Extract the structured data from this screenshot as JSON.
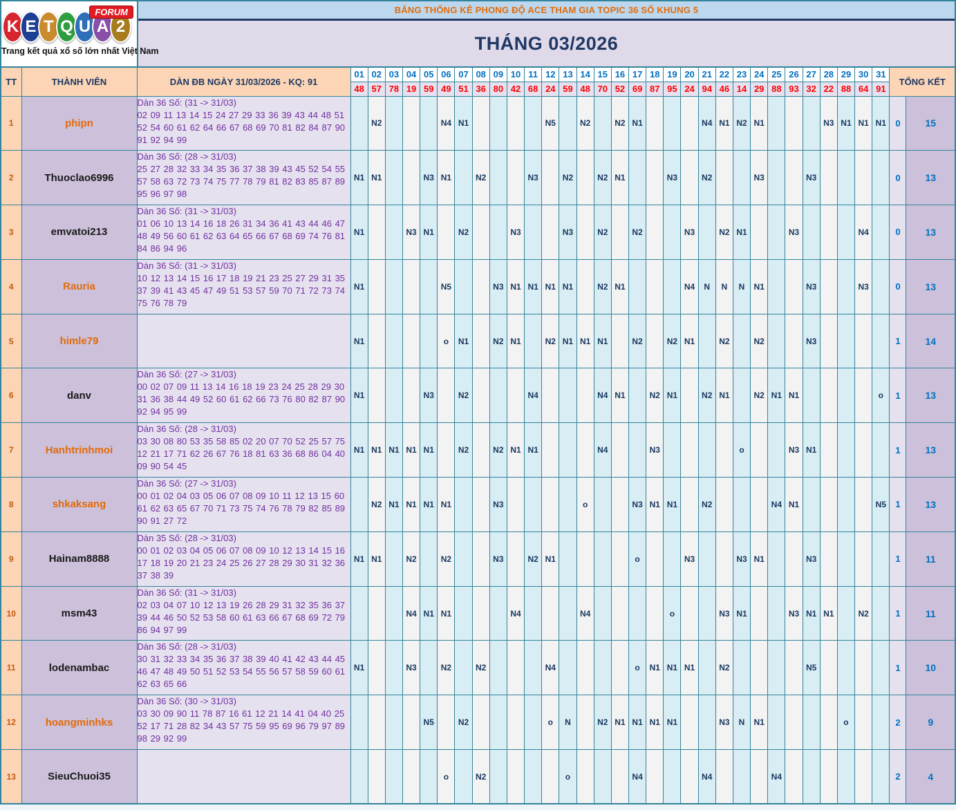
{
  "logo": {
    "letters": [
      {
        "ch": "K",
        "color": "#d6252e"
      },
      {
        "ch": "E",
        "color": "#1d3f94"
      },
      {
        "ch": "T",
        "color": "#c98b2d"
      },
      {
        "ch": "Q",
        "color": "#2f9e3f"
      },
      {
        "ch": "U",
        "color": "#2d6fb8"
      },
      {
        "ch": "A",
        "color": "#8a4fa8"
      },
      {
        "ch": "2",
        "color": "#a67c1c"
      }
    ],
    "badge": "FORUM",
    "tagline": "Trang kết quả xổ số lớn nhất Việt Nam"
  },
  "banner": {
    "title": "BẢNG THỐNG KÊ PHONG ĐỘ ACE THAM GIA TOPIC 36 SỐ KHUNG 5",
    "month": "THÁNG 03/2026"
  },
  "table": {
    "col_tt": "TT",
    "col_member": "THÀNH VIÊN",
    "col_dan": "DÀN ĐB NGÀY 31/03/2026 - KQ: 91",
    "col_total": "TỔNG KẾT",
    "days": [
      "01",
      "02",
      "03",
      "04",
      "05",
      "06",
      "07",
      "08",
      "09",
      "10",
      "11",
      "12",
      "13",
      "14",
      "15",
      "16",
      "17",
      "18",
      "19",
      "20",
      "21",
      "22",
      "23",
      "24",
      "25",
      "26",
      "27",
      "28",
      "29",
      "30",
      "31"
    ],
    "day_results": [
      "48",
      "57",
      "78",
      "19",
      "59",
      "49",
      "51",
      "36",
      "80",
      "42",
      "68",
      "24",
      "59",
      "48",
      "70",
      "52",
      "69",
      "87",
      "95",
      "24",
      "94",
      "46",
      "14",
      "29",
      "88",
      "93",
      "32",
      "22",
      "88",
      "64",
      "91"
    ],
    "rows": [
      {
        "tt": "1",
        "member": "phipn",
        "member_color": "#e26b0a",
        "dan_title": "Dàn 36 Số: (31 -> 31/03)",
        "dan_numbers": "02 09 11 13 14 15 24 27 29 33 36 39 43 44 48 51 52 54 60 61 62 64 66 67 68 69 70 81 82 84 87 90 91 92 94 99",
        "cells": {
          "2": "N2",
          "6": "N4",
          "7": "N1",
          "12": "N5",
          "14": "N2",
          "16": "N2",
          "17": "N1",
          "21": "N4",
          "22": "N1",
          "23": "N2",
          "24": "N1",
          "28": "N3",
          "29": "N1",
          "30": "N1",
          "31": "N1"
        },
        "o_count": "0",
        "total": "15"
      },
      {
        "tt": "2",
        "member": "Thuoclao6996",
        "member_color": "#1a1a1a",
        "dan_title": "Dàn 36 Số: (28 -> 31/03)",
        "dan_numbers": "25 27 28 32 33 34 35 36 37 38 39 43 45 52 54 55 57 58 63 72 73 74 75 77 78 79 81 82 83 85 87 89 95 96 97 98",
        "cells": {
          "1": "N1",
          "2": "N1",
          "5": "N3",
          "6": "N1",
          "8": "N2",
          "11": "N3",
          "13": "N2",
          "15": "N2",
          "16": "N1",
          "19": "N3",
          "21": "N2",
          "24": "N3",
          "27": "N3"
        },
        "o_count": "0",
        "total": "13"
      },
      {
        "tt": "3",
        "member": "emvatoi213",
        "member_color": "#1a1a1a",
        "dan_title": "Dàn 36 Số: (31 -> 31/03)",
        "dan_numbers": "01 06 10 13 14 16 18 26 31 34 36 41 43 44 46 47 48 49 56 60 61 62 63 64 65 66 67 68 69 74 76 81 84 86 94 96",
        "cells": {
          "1": "N1",
          "4": "N3",
          "5": "N1",
          "7": "N2",
          "10": "N3",
          "13": "N3",
          "15": "N2",
          "17": "N2",
          "20": "N3",
          "22": "N2",
          "23": "N1",
          "26": "N3",
          "30": "N4"
        },
        "o_count": "0",
        "total": "13"
      },
      {
        "tt": "4",
        "member": "Rauria",
        "member_color": "#e26b0a",
        "dan_title": "Dàn 36 Số: (31 -> 31/03)",
        "dan_numbers": "10 12 13 14 15 16 17 18 19 21 23 25 27 29 31 35 37 39 41 43 45 47 49 51 53 57 59 70 71 72 73 74 75 76 78 79",
        "cells": {
          "1": "N1",
          "6": "N5",
          "9": "N3",
          "10": "N1",
          "11": "N1",
          "12": "N1",
          "13": "N1",
          "15": "N2",
          "16": "N1",
          "20": "N4",
          "21": "N",
          "22": "N",
          "23": "N",
          "24": "N1",
          "27": "N3",
          "30": "N3"
        },
        "o_count": "0",
        "total": "13"
      },
      {
        "tt": "5",
        "member": "himle79",
        "member_color": "#e26b0a",
        "dan_title": "",
        "dan_numbers": "",
        "cells": {
          "1": "N1",
          "6": "o",
          "7": "N1",
          "9": "N2",
          "10": "N1",
          "12": "N2",
          "13": "N1",
          "14": "N1",
          "15": "N1",
          "17": "N2",
          "19": "N2",
          "20": "N1",
          "22": "N2",
          "24": "N2",
          "27": "N3"
        },
        "o_count": "1",
        "total": "14"
      },
      {
        "tt": "6",
        "member": "danv",
        "member_color": "#1a1a1a",
        "dan_title": "Dàn 36 Số: (27 -> 31/03)",
        "dan_numbers": "00 02 07 09 11 13 14 16 18 19 23 24 25 28 29 30 31 36 38 44 49 52 60 61 62 66 73 76 80 82 87 90 92 94 95 99",
        "cells": {
          "1": "N1",
          "5": "N3",
          "7": "N2",
          "11": "N4",
          "15": "N4",
          "16": "N1",
          "18": "N2",
          "19": "N1",
          "21": "N2",
          "22": "N1",
          "24": "N2",
          "25": "N1",
          "26": "N1",
          "31": "o"
        },
        "o_count": "1",
        "total": "13"
      },
      {
        "tt": "7",
        "member": "Hanhtrinhmoi",
        "member_color": "#e26b0a",
        "dan_title": "Dàn 36 Số: (28 -> 31/03)",
        "dan_numbers": "03 30 08 80 53 35 58 85 02 20 07 70 52 25 57 75 12 21 17 71 62 26 67 76 18 81 63 36 68 86 04 40 09 90 54 45",
        "cells": {
          "1": "N1",
          "2": "N1",
          "3": "N1",
          "4": "N1",
          "5": "N1",
          "7": "N2",
          "9": "N2",
          "10": "N1",
          "11": "N1",
          "15": "N4",
          "18": "N3",
          "23": "o",
          "26": "N3",
          "27": "N1"
        },
        "o_count": "1",
        "total": "13"
      },
      {
        "tt": "8",
        "member": "shkaksang",
        "member_color": "#e26b0a",
        "dan_title": "Dàn 36 Số: (27 -> 31/03)",
        "dan_numbers": "00 01 02 04 03 05 06 07 08 09 10 11 12 13 15 60 61 62 63 65 67 70 71 73 75 74 76 78 79 82 85 89 90 91 27 72",
        "cells": {
          "2": "N2",
          "3": "N1",
          "4": "N1",
          "5": "N1",
          "6": "N1",
          "9": "N3",
          "14": "o",
          "17": "N3",
          "18": "N1",
          "19": "N1",
          "21": "N2",
          "25": "N4",
          "26": "N1",
          "31": "N5"
        },
        "o_count": "1",
        "total": "13"
      },
      {
        "tt": "9",
        "member": "Hainam8888",
        "member_color": "#1a1a1a",
        "dan_title": "Dàn 35 Số: (28 -> 31/03)",
        "dan_numbers": "00 01 02 03 04 05 06 07 08 09 10 12 13 14 15 16 17 18 19 20 21 23 24 25 26 27 28 29 30 31 32 36 37 38 39",
        "cells": {
          "1": "N1",
          "2": "N1",
          "4": "N2",
          "6": "N2",
          "9": "N3",
          "11": "N2",
          "12": "N1",
          "17": "o",
          "20": "N3",
          "23": "N3",
          "24": "N1",
          "27": "N3"
        },
        "o_count": "1",
        "total": "11"
      },
      {
        "tt": "10",
        "member": "msm43",
        "member_color": "#1a1a1a",
        "dan_title": "Dàn 36 Số: (31 -> 31/03)",
        "dan_numbers": "02 03 04 07 10 12 13 19 26 28 29 31 32 35 36 37 39 44 46 50 52 53 58 60 61 63 66 67 68 69 72 79 86 94 97 99",
        "cells": {
          "4": "N4",
          "5": "N1",
          "6": "N1",
          "10": "N4",
          "14": "N4",
          "19": "o",
          "22": "N3",
          "23": "N1",
          "26": "N3",
          "27": "N1",
          "28": "N1",
          "30": "N2"
        },
        "o_count": "1",
        "total": "11"
      },
      {
        "tt": "11",
        "member": "lodenambac",
        "member_color": "#1a1a1a",
        "dan_title": "Dàn 36 Số: (28 -> 31/03)",
        "dan_numbers": "30 31 32 33 34 35 36 37 38 39 40 41 42 43 44 45 46 47 48 49 50 51 52 53 54 55 56 57 58 59 60 61 62 63 65 66",
        "cells": {
          "1": "N1",
          "4": "N3",
          "6": "N2",
          "8": "N2",
          "12": "N4",
          "17": "o",
          "18": "N1",
          "19": "N1",
          "20": "N1",
          "22": "N2",
          "27": "N5"
        },
        "o_count": "1",
        "total": "10"
      },
      {
        "tt": "12",
        "member": "hoangminhks",
        "member_color": "#e26b0a",
        "dan_title": "Dàn 36 Số: (30 -> 31/03)",
        "dan_numbers": "03 30 09 90 11 78 87 16 61 12 21 14 41 04 40 25 52 17 71 28 82 34 43 57 75 59 95 69 96 79 97 89 98 29 92 99",
        "cells": {
          "5": "N5",
          "7": "N2",
          "12": "o",
          "13": "N",
          "15": "N2",
          "16": "N1",
          "17": "N1",
          "18": "N1",
          "19": "N1",
          "22": "N3",
          "23": "N",
          "24": "N1",
          "29": "o"
        },
        "o_count": "2",
        "total": "9"
      },
      {
        "tt": "13",
        "member": "SieuChuoi35",
        "member_color": "#1a1a1a",
        "dan_title": "",
        "dan_numbers": "",
        "cells": {
          "6": "o",
          "8": "N2",
          "13": "o",
          "17": "N4",
          "21": "N4",
          "25": "N4"
        },
        "o_count": "2",
        "total": "4"
      }
    ]
  }
}
